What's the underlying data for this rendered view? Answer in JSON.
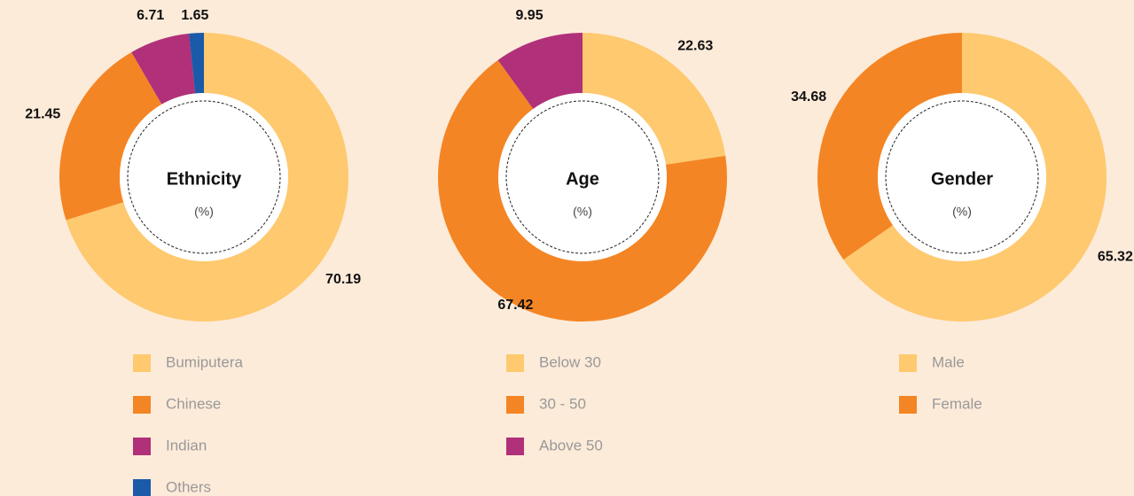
{
  "chart_data": [
    {
      "type": "pie",
      "title": "Ethnicity",
      "subtitle": "(%)",
      "categories": [
        "Bumiputera",
        "Chinese",
        "Indian",
        "Others"
      ],
      "values": [
        70.19,
        21.45,
        6.71,
        1.65
      ],
      "colors": [
        "#fec96f",
        "#f48524",
        "#b0307a",
        "#1a5aa8"
      ]
    },
    {
      "type": "pie",
      "title": "Age",
      "subtitle": "(%)",
      "categories": [
        "Below 30",
        "30 - 50",
        "Above 50"
      ],
      "values": [
        22.63,
        67.42,
        9.95
      ],
      "colors": [
        "#fec96f",
        "#f48524",
        "#b0307a"
      ]
    },
    {
      "type": "pie",
      "title": "Gender",
      "subtitle": "(%)",
      "categories": [
        "Male",
        "Female"
      ],
      "values": [
        65.32,
        34.68
      ],
      "colors": [
        "#fec96f",
        "#f48524"
      ]
    }
  ]
}
